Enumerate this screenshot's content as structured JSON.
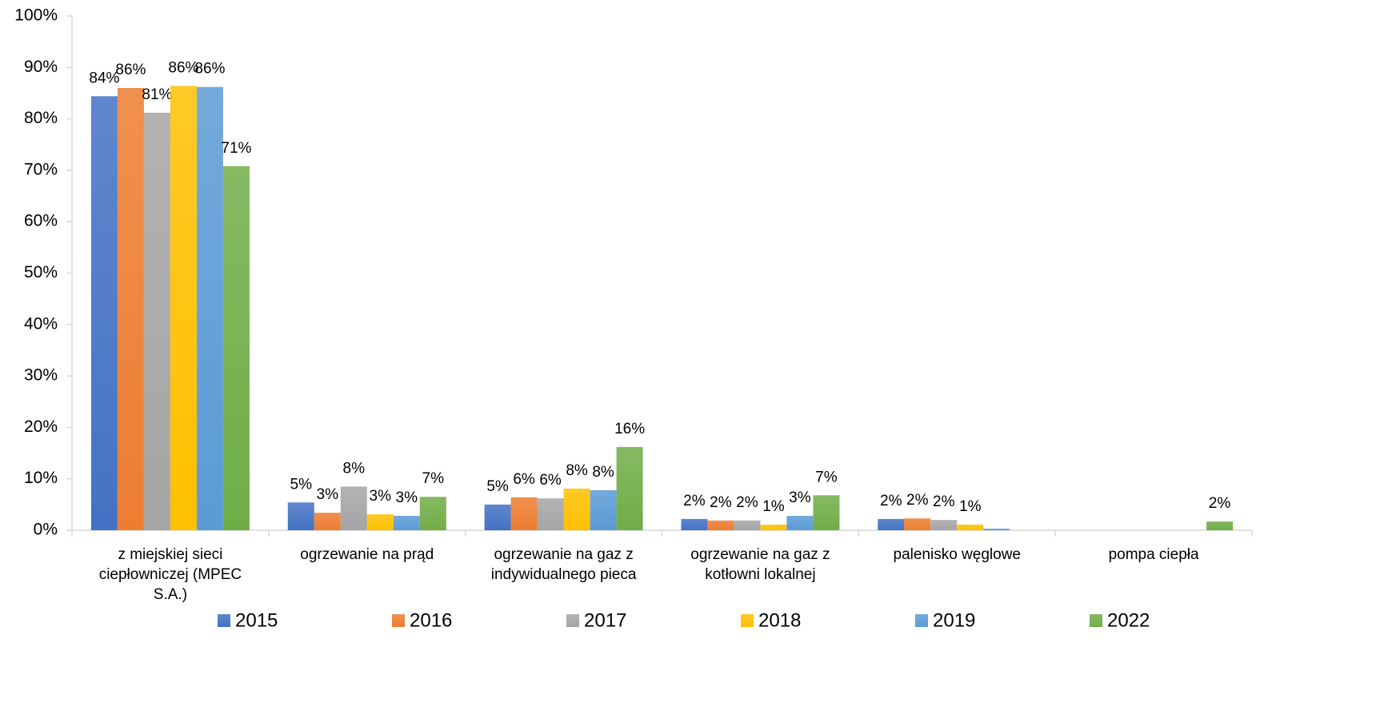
{
  "chart_data": {
    "type": "bar",
    "categories": [
      "z miejskiej sieci ciepłowniczej (MPEC S.A.)",
      "ogrzewanie na prąd",
      "ogrzewanie na gaz z indywidualnego pieca",
      "ogrzewanie na gaz z kotłowni lokalnej",
      "palenisko węglowe",
      "pompa ciepła"
    ],
    "series": [
      {
        "name": "2015",
        "color": "#4472c4",
        "values": [
          84.4,
          5.4,
          5.0,
          2.2,
          2.2,
          null
        ],
        "value_labels": [
          "84%",
          "5%",
          "5%",
          "2%",
          "2%",
          null
        ]
      },
      {
        "name": "2016",
        "color": "#ed7d31",
        "values": [
          86.0,
          3.4,
          6.4,
          1.9,
          2.3,
          null
        ],
        "value_labels": [
          "86%",
          "3%",
          "6%",
          "2%",
          "2%",
          null
        ]
      },
      {
        "name": "2017",
        "color": "#a5a5a5",
        "values": [
          81.2,
          8.5,
          6.2,
          1.9,
          2.0,
          null
        ],
        "value_labels": [
          "81%",
          "8%",
          "6%",
          "2%",
          "2%",
          null
        ]
      },
      {
        "name": "2018",
        "color": "#ffc000",
        "values": [
          86.4,
          3.1,
          8.1,
          1.1,
          1.1,
          null
        ],
        "value_labels": [
          "86%",
          "3%",
          "8%",
          "1%",
          "1%",
          null
        ]
      },
      {
        "name": "2019",
        "color": "#5b9bd5",
        "values": [
          86.2,
          2.8,
          7.8,
          2.8,
          0.3,
          null
        ],
        "value_labels": [
          "86%",
          "3%",
          "8%",
          "3%",
          null,
          null
        ]
      },
      {
        "name": "2022",
        "color": "#70ad47",
        "values": [
          70.8,
          6.5,
          16.2,
          6.8,
          null,
          1.7
        ],
        "value_labels": [
          "71%",
          "7%",
          "16%",
          "7%",
          null,
          "2%"
        ]
      }
    ],
    "ylim": [
      0,
      100
    ],
    "yticks": [
      {
        "value": 0,
        "label": "0%"
      },
      {
        "value": 10,
        "label": "10%"
      },
      {
        "value": 20,
        "label": "20%"
      },
      {
        "value": 30,
        "label": "30%"
      },
      {
        "value": 40,
        "label": "40%"
      },
      {
        "value": 50,
        "label": "50%"
      },
      {
        "value": 60,
        "label": "60%"
      },
      {
        "value": 70,
        "label": "70%"
      },
      {
        "value": 80,
        "label": "80%"
      },
      {
        "value": 90,
        "label": "90%"
      },
      {
        "value": 100,
        "label": "100%"
      }
    ],
    "grid": false,
    "legend": "bottom"
  }
}
